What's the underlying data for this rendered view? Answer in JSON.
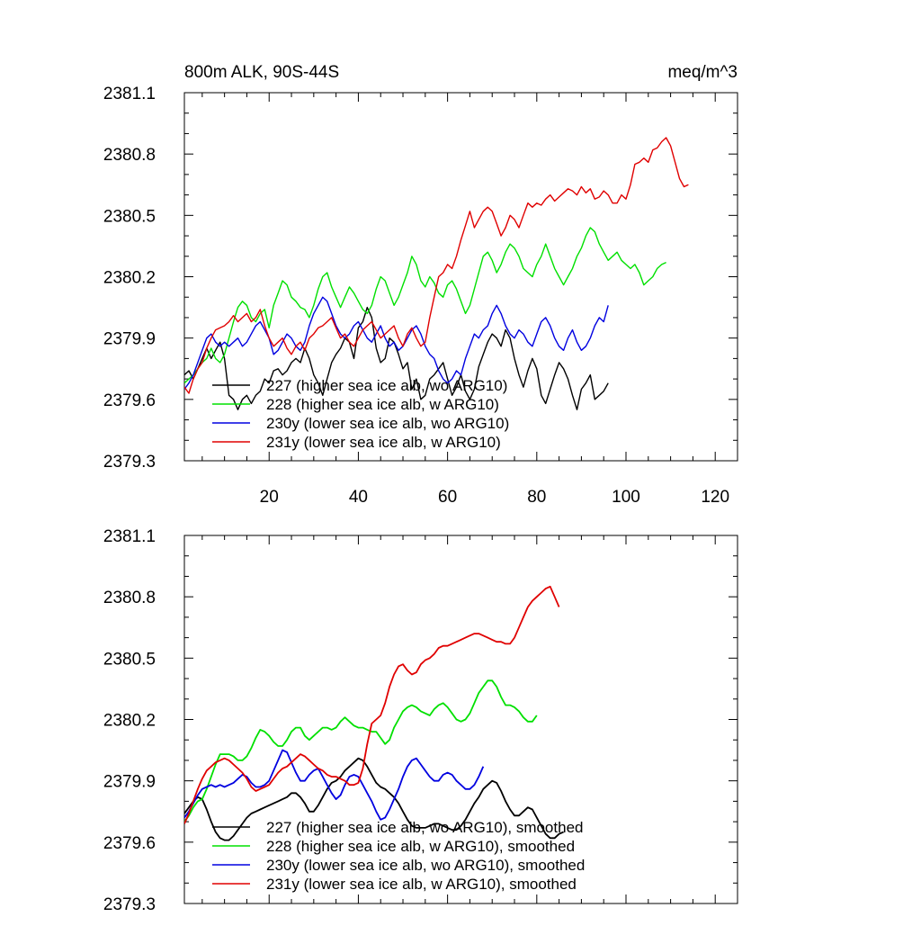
{
  "chart_data": [
    {
      "type": "line",
      "title": "800m ALK, 90S-44S",
      "units": "meq/m^3",
      "xlabel": "",
      "ylabel": "",
      "xlim": [
        1,
        125
      ],
      "ylim": [
        2379.3,
        2381.1
      ],
      "yticks": [
        "2379.3",
        "2379.6",
        "2379.9",
        "2380.2",
        "2380.5",
        "2380.8",
        "2381.1"
      ],
      "xticks": [
        "20",
        "40",
        "60",
        "80",
        "100",
        "120"
      ],
      "grid": false,
      "legend_position": "bottom-left",
      "series": [
        {
          "name": "227 (higher sea ice alb, wo ARG10)",
          "color": "#000000",
          "values": [
            2379.72,
            2379.74,
            2379.7,
            2379.75,
            2379.8,
            2379.85,
            2379.8,
            2379.84,
            2379.88,
            2379.8,
            2379.62,
            2379.6,
            2379.55,
            2379.6,
            2379.62,
            2379.58,
            2379.62,
            2379.64,
            2379.7,
            2379.68,
            2379.74,
            2379.75,
            2379.72,
            2379.74,
            2379.78,
            2379.8,
            2379.78,
            2379.85,
            2379.8,
            2379.72,
            2379.68,
            2379.62,
            2379.7,
            2379.78,
            2379.82,
            2379.85,
            2379.9,
            2379.88,
            2379.8,
            2379.95,
            2379.98,
            2380.05,
            2380.0,
            2379.85,
            2379.78,
            2379.8,
            2379.9,
            2379.88,
            2379.82,
            2379.75,
            2379.78,
            2379.65,
            2379.7,
            2379.6,
            2379.62,
            2379.7,
            2379.72,
            2379.75,
            2379.78,
            2379.7,
            2379.62,
            2379.66,
            2379.72,
            2379.64,
            2379.6,
            2379.65,
            2379.76,
            2379.82,
            2379.88,
            2379.92,
            2379.9,
            2379.86,
            2379.94,
            2379.9,
            2379.8,
            2379.72,
            2379.66,
            2379.74,
            2379.8,
            2379.75,
            2379.62,
            2379.58,
            2379.65,
            2379.72,
            2379.78,
            2379.75,
            2379.7,
            2379.62,
            2379.55,
            2379.65,
            2379.68,
            2379.72,
            2379.6,
            2379.62,
            2379.64,
            2379.68
          ]
        },
        {
          "name": "228 (higher sea ice alb, w ARG10)",
          "color": "#00e000",
          "values": [
            2379.68,
            2379.7,
            2379.72,
            2379.75,
            2379.78,
            2379.8,
            2379.85,
            2379.8,
            2379.78,
            2379.82,
            2379.9,
            2379.98,
            2380.05,
            2380.08,
            2380.06,
            2380.0,
            2379.98,
            2380.02,
            2380.04,
            2379.95,
            2380.06,
            2380.12,
            2380.18,
            2380.16,
            2380.1,
            2380.08,
            2380.05,
            2380.04,
            2380.0,
            2380.06,
            2380.14,
            2380.2,
            2380.22,
            2380.15,
            2380.1,
            2380.05,
            2380.1,
            2380.15,
            2380.12,
            2380.08,
            2380.04,
            2380.02,
            2380.06,
            2380.14,
            2380.2,
            2380.18,
            2380.12,
            2380.06,
            2380.1,
            2380.16,
            2380.22,
            2380.3,
            2380.26,
            2380.18,
            2380.15,
            2380.2,
            2380.17,
            2380.12,
            2380.1,
            2380.16,
            2380.18,
            2380.14,
            2380.08,
            2380.02,
            2380.06,
            2380.14,
            2380.22,
            2380.3,
            2380.32,
            2380.28,
            2380.22,
            2380.26,
            2380.32,
            2380.36,
            2380.34,
            2380.3,
            2380.24,
            2380.22,
            2380.2,
            2380.26,
            2380.3,
            2380.36,
            2380.3,
            2380.24,
            2380.2,
            2380.16,
            2380.2,
            2380.24,
            2380.3,
            2380.34,
            2380.4,
            2380.44,
            2380.42,
            2380.36,
            2380.32,
            2380.28,
            2380.3,
            2380.32,
            2380.28,
            2380.26,
            2380.24,
            2380.26,
            2380.22,
            2380.16,
            2380.18,
            2380.2,
            2380.24,
            2380.26,
            2380.27
          ]
        },
        {
          "name": "230y (lower sea ice alb, wo ARG10)",
          "color": "#0000e0",
          "values": [
            2379.65,
            2379.68,
            2379.72,
            2379.78,
            2379.84,
            2379.9,
            2379.92,
            2379.88,
            2379.86,
            2379.88,
            2379.86,
            2379.88,
            2379.9,
            2379.86,
            2379.88,
            2379.92,
            2379.96,
            2379.98,
            2379.94,
            2379.9,
            2379.82,
            2379.84,
            2379.88,
            2379.92,
            2379.9,
            2379.86,
            2379.84,
            2379.88,
            2379.96,
            2380.02,
            2380.06,
            2380.1,
            2380.08,
            2380.02,
            2379.96,
            2379.92,
            2379.9,
            2379.92,
            2379.96,
            2379.98,
            2379.94,
            2379.9,
            2379.88,
            2379.92,
            2379.96,
            2379.9,
            2379.86,
            2379.88,
            2379.84,
            2379.86,
            2379.9,
            2379.94,
            2379.96,
            2379.92,
            2379.86,
            2379.82,
            2379.8,
            2379.74,
            2379.7,
            2379.68,
            2379.7,
            2379.74,
            2379.72,
            2379.8,
            2379.86,
            2379.92,
            2379.9,
            2379.94,
            2379.96,
            2380.02,
            2380.06,
            2380.02,
            2379.96,
            2379.92,
            2379.9,
            2379.94,
            2379.92,
            2379.88,
            2379.86,
            2379.92,
            2379.98,
            2380.0,
            2379.96,
            2379.9,
            2379.86,
            2379.84,
            2379.9,
            2379.94,
            2379.88,
            2379.84,
            2379.86,
            2379.9,
            2379.96,
            2380.0,
            2379.98,
            2380.06
          ]
        },
        {
          "name": "231y (lower sea ice alb, w ARG10)",
          "color": "#e00000",
          "values": [
            2379.66,
            2379.63,
            2379.7,
            2379.75,
            2379.78,
            2379.85,
            2379.9,
            2379.94,
            2379.95,
            2379.96,
            2379.98,
            2380.01,
            2379.98,
            2380.0,
            2380.02,
            2379.98,
            2380.0,
            2380.04,
            2379.96,
            2379.9,
            2379.86,
            2379.88,
            2379.9,
            2379.85,
            2379.82,
            2379.86,
            2379.88,
            2379.84,
            2379.9,
            2379.92,
            2379.95,
            2379.96,
            2379.98,
            2380.0,
            2379.95,
            2379.9,
            2379.92,
            2379.88,
            2379.86,
            2379.9,
            2379.94,
            2379.96,
            2379.98,
            2379.94,
            2379.9,
            2379.92,
            2379.94,
            2379.96,
            2379.9,
            2379.86,
            2379.92,
            2379.95,
            2379.9,
            2379.86,
            2379.88,
            2380.0,
            2380.1,
            2380.2,
            2380.22,
            2380.26,
            2380.24,
            2380.3,
            2380.38,
            2380.45,
            2380.52,
            2380.44,
            2380.48,
            2380.52,
            2380.54,
            2380.52,
            2380.46,
            2380.4,
            2380.44,
            2380.5,
            2380.48,
            2380.44,
            2380.5,
            2380.56,
            2380.54,
            2380.56,
            2380.55,
            2380.58,
            2380.6,
            2380.57,
            2380.59,
            2380.61,
            2380.63,
            2380.62,
            2380.6,
            2380.64,
            2380.61,
            2380.63,
            2380.58,
            2380.59,
            2380.62,
            2380.6,
            2380.56,
            2380.56,
            2380.6,
            2380.58,
            2380.65,
            2380.75,
            2380.76,
            2380.78,
            2380.76,
            2380.82,
            2380.83,
            2380.86,
            2380.88,
            2380.84,
            2380.76,
            2380.68,
            2380.64,
            2380.65
          ]
        }
      ]
    },
    {
      "type": "line",
      "title": "",
      "units": "",
      "xlabel": "",
      "ylabel": "",
      "xlim": [
        1,
        125
      ],
      "ylim": [
        2379.3,
        2381.1
      ],
      "yticks": [
        "2379.3",
        "2379.6",
        "2379.9",
        "2380.2",
        "2380.5",
        "2380.8",
        "2381.1"
      ],
      "xticks": [],
      "grid": false,
      "legend_position": "bottom-left",
      "series": [
        {
          "name": "227 (higher sea ice alb, wo ARG10), smoothed",
          "color": "#000000",
          "values": [
            2379.74,
            2379.77,
            2379.8,
            2379.82,
            2379.81,
            2379.76,
            2379.7,
            2379.65,
            2379.62,
            2379.61,
            2379.61,
            2379.63,
            2379.66,
            2379.69,
            2379.72,
            2379.74,
            2379.75,
            2379.76,
            2379.77,
            2379.78,
            2379.79,
            2379.8,
            2379.81,
            2379.82,
            2379.84,
            2379.84,
            2379.82,
            2379.79,
            2379.75,
            2379.75,
            2379.78,
            2379.82,
            2379.86,
            2379.89,
            2379.9,
            2379.92,
            2379.95,
            2379.97,
            2379.99,
            2380.01,
            2380.0,
            2379.97,
            2379.93,
            2379.89,
            2379.87,
            2379.86,
            2379.84,
            2379.82,
            2379.79,
            2379.75,
            2379.71,
            2379.68,
            2379.67,
            2379.67,
            2379.67,
            2379.68,
            2379.69,
            2379.69,
            2379.68,
            2379.67,
            2379.66,
            2379.66,
            2379.68,
            2379.71,
            2379.75,
            2379.79,
            2379.82,
            2379.86,
            2379.88,
            2379.9,
            2379.89,
            2379.85,
            2379.8,
            2379.76,
            2379.73,
            2379.73,
            2379.75,
            2379.77,
            2379.76,
            2379.72,
            2379.68,
            2379.64,
            2379.62,
            2379.62,
            2379.64,
            2379.65
          ]
        },
        {
          "name": "228 (higher sea ice alb, w ARG10), smoothed",
          "color": "#00e000",
          "values": [
            2379.7,
            2379.73,
            2379.77,
            2379.8,
            2379.81,
            2379.86,
            2379.92,
            2379.98,
            2380.03,
            2380.03,
            2380.03,
            2380.02,
            2380.0,
            2380.0,
            2380.02,
            2380.06,
            2380.11,
            2380.15,
            2380.14,
            2380.12,
            2380.09,
            2380.07,
            2380.07,
            2380.1,
            2380.14,
            2380.16,
            2380.16,
            2380.12,
            2380.1,
            2380.12,
            2380.14,
            2380.16,
            2380.16,
            2380.15,
            2380.16,
            2380.19,
            2380.21,
            2380.19,
            2380.17,
            2380.16,
            2380.16,
            2380.15,
            2380.14,
            2380.14,
            2380.11,
            2380.08,
            2380.1,
            2380.16,
            2380.2,
            2380.24,
            2380.26,
            2380.27,
            2380.26,
            2380.24,
            2380.23,
            2380.22,
            2380.25,
            2380.27,
            2380.28,
            2380.26,
            2380.23,
            2380.2,
            2380.19,
            2380.2,
            2380.23,
            2380.28,
            2380.33,
            2380.36,
            2380.39,
            2380.39,
            2380.36,
            2380.31,
            2380.27,
            2380.27,
            2380.26,
            2380.24,
            2380.21,
            2380.19,
            2380.19,
            2380.22
          ]
        },
        {
          "name": "230y (lower sea ice alb, wo ARG10), smoothed",
          "color": "#0000e0",
          "values": [
            2379.72,
            2379.75,
            2379.79,
            2379.83,
            2379.86,
            2379.87,
            2379.88,
            2379.87,
            2379.88,
            2379.87,
            2379.88,
            2379.89,
            2379.91,
            2379.93,
            2379.92,
            2379.89,
            2379.87,
            2379.87,
            2379.88,
            2379.9,
            2379.95,
            2380.0,
            2380.05,
            2380.04,
            2379.99,
            2379.94,
            2379.9,
            2379.9,
            2379.93,
            2379.95,
            2379.96,
            2379.92,
            2379.88,
            2379.84,
            2379.81,
            2379.83,
            2379.88,
            2379.92,
            2379.93,
            2379.92,
            2379.88,
            2379.84,
            2379.8,
            2379.75,
            2379.71,
            2379.72,
            2379.76,
            2379.81,
            2379.86,
            2379.92,
            2379.97,
            2380.0,
            2380.01,
            2379.98,
            2379.95,
            2379.92,
            2379.9,
            2379.9,
            2379.93,
            2379.94,
            2379.93,
            2379.9,
            2379.88,
            2379.86,
            2379.86,
            2379.88,
            2379.92,
            2379.97
          ]
        },
        {
          "name": "231y (lower sea ice alb, w ARG10), smoothed",
          "color": "#e00000",
          "values": [
            2379.69,
            2379.74,
            2379.8,
            2379.86,
            2379.91,
            2379.95,
            2379.97,
            2379.99,
            2380.0,
            2380.01,
            2380.0,
            2379.98,
            2379.96,
            2379.94,
            2379.91,
            2379.87,
            2379.85,
            2379.86,
            2379.87,
            2379.88,
            2379.91,
            2379.94,
            2379.96,
            2379.97,
            2379.99,
            2380.01,
            2380.03,
            2380.02,
            2380.0,
            2379.98,
            2379.96,
            2379.95,
            2379.93,
            2379.92,
            2379.92,
            2379.91,
            2379.9,
            2379.88,
            2379.88,
            2379.89,
            2379.96,
            2380.08,
            2380.18,
            2380.2,
            2380.22,
            2380.28,
            2380.36,
            2380.42,
            2380.46,
            2380.47,
            2380.44,
            2380.42,
            2380.43,
            2380.47,
            2380.49,
            2380.5,
            2380.52,
            2380.55,
            2380.56,
            2380.56,
            2380.57,
            2380.58,
            2380.59,
            2380.6,
            2380.61,
            2380.62,
            2380.62,
            2380.61,
            2380.6,
            2380.59,
            2380.58,
            2380.58,
            2380.57,
            2380.57,
            2380.6,
            2380.65,
            2380.7,
            2380.75,
            2380.78,
            2380.8,
            2380.82,
            2380.84,
            2380.85,
            2380.8,
            2380.75
          ]
        }
      ]
    }
  ]
}
